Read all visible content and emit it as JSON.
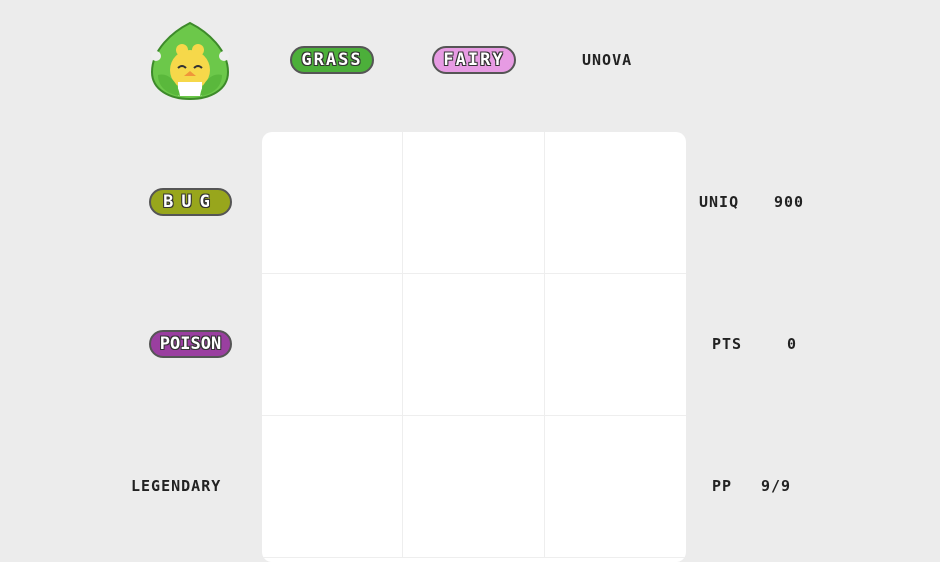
{
  "columns": [
    {
      "label": "GRASS",
      "kind": "type",
      "color": "#4caf3a"
    },
    {
      "label": "FAIRY",
      "kind": "type",
      "color": "#e79be3"
    },
    {
      "label": "UNOVA",
      "kind": "region"
    }
  ],
  "rows": [
    {
      "label": "BUG",
      "kind": "type",
      "color": "#98a61c"
    },
    {
      "label": "POISON",
      "kind": "type",
      "color": "#9a3fa0"
    },
    {
      "label": "LEGENDARY",
      "kind": "category"
    }
  ],
  "stats": {
    "uniq_label": "UNIQ",
    "uniq_value": "900",
    "pts_label": "PTS",
    "pts_value": "0",
    "pp_label": "PP",
    "pp_value": "9/9"
  },
  "logo_icon": "leaf-chick-mascot"
}
